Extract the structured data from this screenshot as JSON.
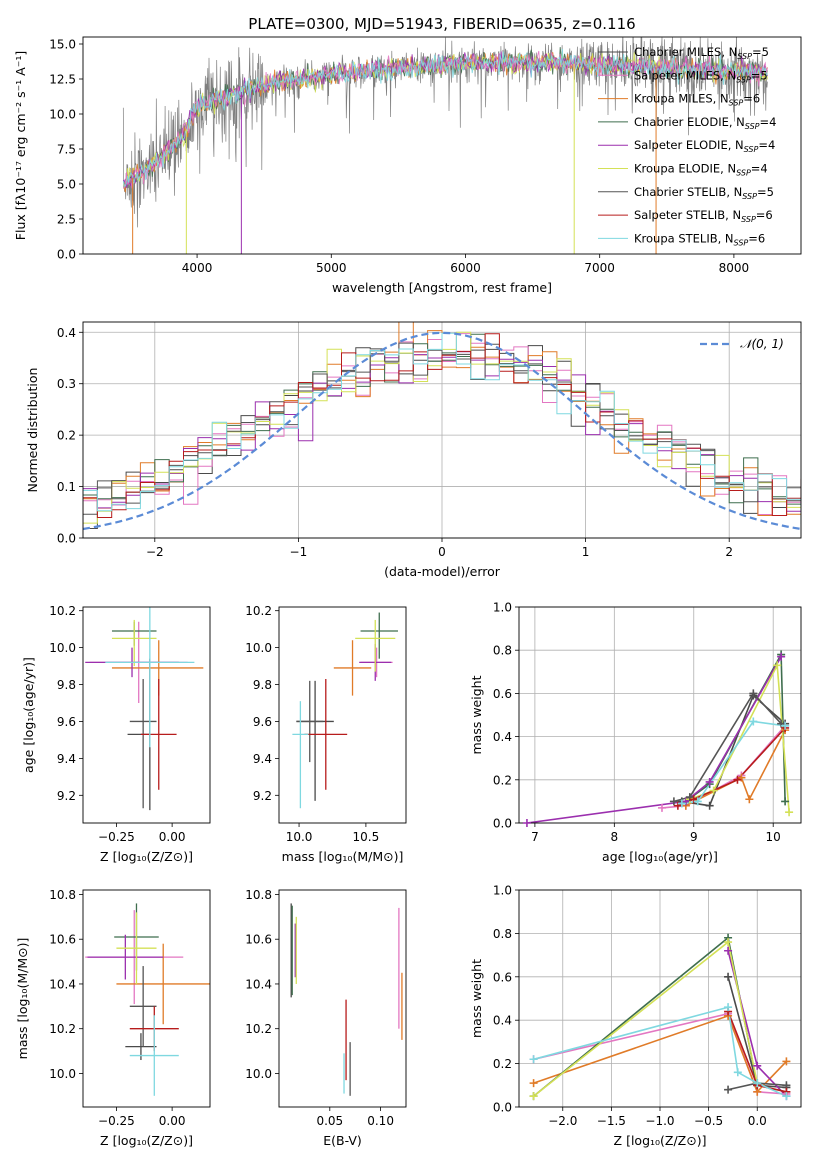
{
  "figure": {
    "title": "PLATE=0300, MJD=51943, FIBERID=0635, z=0.116"
  },
  "legend_models": [
    {
      "name": "Chabrier MILES, N",
      "sub": "SSP",
      "tail": "=5",
      "color": "#4a4a4a"
    },
    {
      "name": "Salpeter MILES, N",
      "sub": "SSP",
      "tail": "=5",
      "color": "#e377c2"
    },
    {
      "name": "Kroupa MILES, N",
      "sub": "SSP",
      "tail": "=6",
      "color": "#e07b28"
    },
    {
      "name": "Chabrier ELODIE, N",
      "sub": "SSP",
      "tail": "=4",
      "color": "#3f6e4e"
    },
    {
      "name": "Salpeter ELODIE, N",
      "sub": "SSP",
      "tail": "=4",
      "color": "#9b2fae"
    },
    {
      "name": "Kroupa ELODIE, N",
      "sub": "SSP",
      "tail": "=4",
      "color": "#d4e157"
    },
    {
      "name": "Chabrier STELIB, N",
      "sub": "SSP",
      "tail": "=5",
      "color": "#555555"
    },
    {
      "name": "Salpeter STELIB, N",
      "sub": "SSP",
      "tail": "=6",
      "color": "#b71c1c"
    },
    {
      "name": "Kroupa STELIB, N",
      "sub": "SSP",
      "tail": "=6",
      "color": "#7fd8e0"
    }
  ],
  "chart_data": [
    {
      "id": "spectrum",
      "type": "line",
      "xlabel": "wavelength [Angstrom, rest frame]",
      "ylabel": "Flux [fλ10⁻¹⁷ erg cm⁻² s⁻¹ A⁻¹]",
      "xlim": [
        3150,
        8500
      ],
      "ylim": [
        0,
        15.5
      ],
      "xticks": [
        4000,
        5000,
        6000,
        7000,
        8000
      ],
      "yticks": [
        0.0,
        2.5,
        5.0,
        7.5,
        10.0,
        12.5,
        15.0
      ],
      "data_range": [
        3450,
        8250
      ],
      "data_envelope": {
        "x": [
          3450,
          3700,
          3900,
          4000,
          4300,
          4600,
          5000,
          5500,
          6000,
          6500,
          7000,
          7500,
          8000,
          8250
        ],
        "y": [
          5.0,
          6.5,
          8.5,
          10.5,
          11.5,
          12.3,
          12.8,
          13.3,
          13.6,
          13.7,
          13.5,
          13.3,
          13.1,
          13.0
        ]
      },
      "legend_position": "upper right"
    },
    {
      "id": "residuals",
      "type": "histogram",
      "xlabel": "(data-model)/error",
      "ylabel": "Normed distribution",
      "xlim": [
        -2.5,
        2.5
      ],
      "ylim": [
        0,
        0.42
      ],
      "xticks": [
        -2,
        -1,
        0,
        1,
        2
      ],
      "yticks": [
        0.0,
        0.1,
        0.2,
        0.3,
        0.4
      ],
      "grid": true,
      "reference": {
        "label": "𝒩(0, 1)",
        "type": "gaussian",
        "mean": 0,
        "sigma": 1,
        "color": "#5b8bd6"
      },
      "legend_position": "upper right"
    },
    {
      "id": "age-vs-Z",
      "type": "errorbar",
      "xlabel": "Z [log₁₀(Z/Z⊙)]",
      "ylabel": "age  [log₁₀(age/yr)]",
      "xlim": [
        -0.4,
        0.17
      ],
      "ylim": [
        9.05,
        10.22
      ],
      "xticks": [
        -0.25,
        0.0
      ],
      "xticklabels": [
        "−0.25",
        "0.00"
      ],
      "yticks": [
        9.2,
        9.4,
        9.6,
        9.8,
        10.0,
        10.2
      ],
      "points": [
        {
          "model": 0,
          "x": -0.1,
          "y": 9.53,
          "xerr": [
            0.1,
            0.0
          ],
          "yerr": [
            0.41,
            0.41
          ]
        },
        {
          "model": 1,
          "x": -0.15,
          "y": 9.92,
          "xerr": [
            0.22,
            0.22
          ],
          "yerr": [
            0.22,
            0.22
          ]
        },
        {
          "model": 2,
          "x": -0.06,
          "y": 9.89,
          "xerr": [
            0.21,
            0.2
          ],
          "yerr": [
            0.15,
            0.15
          ]
        },
        {
          "model": 3,
          "x": -0.17,
          "y": 10.09,
          "xerr": [
            0.1,
            0.1
          ],
          "yerr": [
            0.08,
            0.05
          ]
        },
        {
          "model": 4,
          "x": -0.18,
          "y": 9.92,
          "xerr": [
            0.21,
            0.21
          ],
          "yerr": [
            0.08,
            0.08
          ]
        },
        {
          "model": 5,
          "x": -0.17,
          "y": 10.05,
          "xerr": [
            0.1,
            0.1
          ],
          "yerr": [
            0.15,
            0.1
          ]
        },
        {
          "model": 6,
          "x": -0.13,
          "y": 9.6,
          "xerr": [
            0.06,
            0.06
          ],
          "yerr": [
            0.47,
            0.23
          ]
        },
        {
          "model": 7,
          "x": -0.06,
          "y": 9.53,
          "xerr": [
            0.08,
            0.08
          ],
          "yerr": [
            0.3,
            0.3
          ]
        },
        {
          "model": 8,
          "x": -0.1,
          "y": 9.92,
          "xerr": [
            0.2,
            0.2
          ],
          "yerr": [
            0.46,
            0.46
          ]
        }
      ]
    },
    {
      "id": "age-vs-mass",
      "type": "errorbar",
      "xlabel": "mass [log₁₀(M/M⊙)]",
      "ylabel": "",
      "xlim": [
        9.85,
        10.8
      ],
      "ylim": [
        9.05,
        10.22
      ],
      "xticks": [
        10.0,
        10.5
      ],
      "xticklabels": [
        "10.0",
        "10.5"
      ],
      "yticks": [
        9.2,
        9.4,
        9.6,
        9.8,
        10.0,
        10.2
      ],
      "points": [
        {
          "model": 0,
          "x": 10.12,
          "y": 9.6,
          "xerr": [
            0.14,
            0.14
          ],
          "yerr": [
            0.43,
            0.22
          ]
        },
        {
          "model": 1,
          "x": 10.58,
          "y": 9.92,
          "xerr": [
            0.12,
            0.12
          ],
          "yerr": [
            0.08,
            0.08
          ]
        },
        {
          "model": 2,
          "x": 10.4,
          "y": 9.89,
          "xerr": [
            0.14,
            0.14
          ],
          "yerr": [
            0.15,
            0.15
          ]
        },
        {
          "model": 3,
          "x": 10.6,
          "y": 10.09,
          "xerr": [
            0.14,
            0.14
          ],
          "yerr": [
            0.15,
            0.1
          ]
        },
        {
          "model": 4,
          "x": 10.57,
          "y": 9.92,
          "xerr": [
            0.12,
            0.12
          ],
          "yerr": [
            0.1,
            0.1
          ]
        },
        {
          "model": 5,
          "x": 10.57,
          "y": 10.05,
          "xerr": [
            0.15,
            0.15
          ],
          "yerr": [
            0.18,
            0.1
          ]
        },
        {
          "model": 6,
          "x": 10.08,
          "y": 9.6,
          "xerr": [
            0.1,
            0.1
          ],
          "yerr": [
            0.22,
            0.22
          ]
        },
        {
          "model": 7,
          "x": 10.2,
          "y": 9.53,
          "xerr": [
            0.16,
            0.16
          ],
          "yerr": [
            0.3,
            0.3
          ]
        },
        {
          "model": 8,
          "x": 10.01,
          "y": 9.53,
          "xerr": [
            0.06,
            0.06
          ],
          "yerr": [
            0.4,
            0.18
          ]
        }
      ]
    },
    {
      "id": "mass-weight-vs-age",
      "type": "line",
      "xlabel": "age  [log₁₀(age/yr)]",
      "ylabel": "mass weight",
      "xlim": [
        6.8,
        10.35
      ],
      "ylim": [
        0,
        1.0
      ],
      "xticks": [
        7,
        8,
        9,
        10
      ],
      "yticks": [
        0.0,
        0.2,
        0.4,
        0.6,
        0.8,
        1.0
      ],
      "grid": true,
      "series": [
        {
          "model": 0,
          "x": [
            8.85,
            9.2,
            9.75,
            10.15
          ],
          "y": [
            0.1,
            0.08,
            0.59,
            0.46
          ]
        },
        {
          "model": 1,
          "x": [
            8.6,
            8.9,
            9.6,
            10.15
          ],
          "y": [
            0.07,
            0.08,
            0.22,
            0.45
          ]
        },
        {
          "model": 2,
          "x": [
            8.9,
            9.6,
            9.7,
            10.15
          ],
          "y": [
            0.08,
            0.21,
            0.11,
            0.43
          ]
        },
        {
          "model": 3,
          "x": [
            8.9,
            9.2,
            10.1,
            10.15
          ],
          "y": [
            0.1,
            0.18,
            0.78,
            0.1
          ]
        },
        {
          "model": 4,
          "x": [
            6.9,
            8.9,
            9.2,
            10.1
          ],
          "y": [
            0.0,
            0.1,
            0.19,
            0.77
          ]
        },
        {
          "model": 5,
          "x": [
            8.95,
            9.25,
            10.05,
            10.2
          ],
          "y": [
            0.11,
            0.15,
            0.73,
            0.05
          ]
        },
        {
          "model": 6,
          "x": [
            8.75,
            8.95,
            9.75,
            10.1
          ],
          "y": [
            0.1,
            0.12,
            0.6,
            0.46
          ]
        },
        {
          "model": 7,
          "x": [
            8.8,
            9.0,
            9.55,
            10.15
          ],
          "y": [
            0.08,
            0.11,
            0.2,
            0.44
          ]
        },
        {
          "model": 8,
          "x": [
            8.85,
            9.05,
            9.75,
            10.15
          ],
          "y": [
            0.09,
            0.1,
            0.47,
            0.45
          ]
        }
      ]
    },
    {
      "id": "mass-vs-Z",
      "type": "errorbar",
      "xlabel": "Z [log₁₀(Z/Z⊙)]",
      "ylabel": "mass [log₁₀(M/M⊙)]",
      "xlim": [
        -0.4,
        0.17
      ],
      "ylim": [
        9.85,
        10.82
      ],
      "xticks": [
        -0.25,
        0.0
      ],
      "xticklabels": [
        "−0.25",
        "0.00"
      ],
      "yticks": [
        10.0,
        10.2,
        10.4,
        10.6,
        10.8
      ],
      "points": [
        {
          "model": 0,
          "x": -0.14,
          "y": 10.12,
          "xerr": [
            0.07,
            0.07
          ],
          "yerr": [
            0.06,
            0.06
          ]
        },
        {
          "model": 1,
          "x": -0.17,
          "y": 10.52,
          "xerr": [
            0.22,
            0.22
          ],
          "yerr": [
            0.21,
            0.21
          ]
        },
        {
          "model": 2,
          "x": -0.04,
          "y": 10.4,
          "xerr": [
            0.21,
            0.21
          ],
          "yerr": [
            0.18,
            0.18
          ]
        },
        {
          "model": 3,
          "x": -0.16,
          "y": 10.61,
          "xerr": [
            0.1,
            0.1
          ],
          "yerr": [
            0.15,
            0.15
          ]
        },
        {
          "model": 4,
          "x": -0.21,
          "y": 10.52,
          "xerr": [
            0.17,
            0.17
          ],
          "yerr": [
            0.1,
            0.1
          ]
        },
        {
          "model": 5,
          "x": -0.16,
          "y": 10.56,
          "xerr": [
            0.09,
            0.09
          ],
          "yerr": [
            0.16,
            0.16
          ]
        },
        {
          "model": 6,
          "x": -0.13,
          "y": 10.3,
          "xerr": [
            0.06,
            0.06
          ],
          "yerr": [
            0.18,
            0.18
          ]
        },
        {
          "model": 7,
          "x": -0.08,
          "y": 10.2,
          "xerr": [
            0.11,
            0.11
          ],
          "yerr": [
            0.1,
            0.1
          ]
        },
        {
          "model": 8,
          "x": -0.08,
          "y": 10.08,
          "xerr": [
            0.11,
            0.11
          ],
          "yerr": [
            0.18,
            0.18
          ]
        }
      ]
    },
    {
      "id": "mass-vs-ebv",
      "type": "errorbar",
      "xlabel": "E(B-V)",
      "ylabel": "",
      "xlim": [
        0.0,
        0.125
      ],
      "ylim": [
        9.85,
        10.82
      ],
      "xticks": [
        0.05,
        0.1
      ],
      "xticklabels": [
        "0.05",
        "0.10"
      ],
      "yticks": [
        10.0,
        10.2,
        10.4,
        10.6,
        10.8
      ],
      "points": [
        {
          "model": 0,
          "x": 0.012,
          "y": 10.55,
          "xerr": [
            0,
            0
          ],
          "yerr": [
            0.21,
            0.21
          ]
        },
        {
          "model": 1,
          "x": 0.118,
          "y": 10.47,
          "xerr": [
            0,
            0
          ],
          "yerr": [
            0.27,
            0.27
          ]
        },
        {
          "model": 2,
          "x": 0.121,
          "y": 10.3,
          "xerr": [
            0,
            0
          ],
          "yerr": [
            0.15,
            0.15
          ]
        },
        {
          "model": 3,
          "x": 0.013,
          "y": 10.55,
          "xerr": [
            0,
            0
          ],
          "yerr": [
            0.2,
            0.2
          ]
        },
        {
          "model": 4,
          "x": 0.016,
          "y": 10.55,
          "xerr": [
            0,
            0
          ],
          "yerr": [
            0.12,
            0.12
          ]
        },
        {
          "model": 5,
          "x": 0.017,
          "y": 10.55,
          "xerr": [
            0,
            0
          ],
          "yerr": [
            0.15,
            0.15
          ]
        },
        {
          "model": 6,
          "x": 0.07,
          "y": 10.02,
          "xerr": [
            0,
            0
          ],
          "yerr": [
            0.12,
            0.12
          ]
        },
        {
          "model": 7,
          "x": 0.066,
          "y": 10.15,
          "xerr": [
            0,
            0
          ],
          "yerr": [
            0.18,
            0.18
          ]
        },
        {
          "model": 8,
          "x": 0.064,
          "y": 10.0,
          "xerr": [
            0,
            0
          ],
          "yerr": [
            0.09,
            0.09
          ]
        }
      ]
    },
    {
      "id": "mass-weight-vs-Z",
      "type": "line",
      "xlabel": "Z [log₁₀(Z/Z⊙)]",
      "ylabel": "mass weight",
      "xlim": [
        -2.45,
        0.45
      ],
      "ylim": [
        0,
        1.0
      ],
      "xticks": [
        -2.0,
        -1.5,
        -1.0,
        -0.5,
        0.0
      ],
      "xticklabels": [
        "−2.0",
        "−1.5",
        "−1.0",
        "−0.5",
        "0.0"
      ],
      "yticks": [
        0.0,
        0.2,
        0.4,
        0.6,
        0.8,
        1.0
      ],
      "grid": true,
      "series": [
        {
          "model": 0,
          "x": [
            -0.3,
            0.0,
            0.3
          ],
          "y": [
            0.6,
            0.1,
            0.09
          ]
        },
        {
          "model": 1,
          "x": [
            -2.3,
            -0.3,
            0.0,
            0.3
          ],
          "y": [
            0.22,
            0.43,
            0.07,
            0.06
          ]
        },
        {
          "model": 2,
          "x": [
            -2.3,
            -0.3,
            0.0,
            0.3
          ],
          "y": [
            0.11,
            0.42,
            0.07,
            0.21
          ]
        },
        {
          "model": 3,
          "x": [
            -2.3,
            -0.3,
            0.0
          ],
          "y": [
            0.05,
            0.78,
            0.1
          ]
        },
        {
          "model": 4,
          "x": [
            -0.3,
            0.0,
            0.3
          ],
          "y": [
            0.72,
            0.19,
            0.05
          ]
        },
        {
          "model": 5,
          "x": [
            -2.3,
            -0.3,
            0.0
          ],
          "y": [
            0.05,
            0.76,
            0.11
          ]
        },
        {
          "model": 6,
          "x": [
            -0.3,
            0.0,
            0.3
          ],
          "y": [
            0.08,
            0.11,
            0.1
          ]
        },
        {
          "model": 7,
          "x": [
            -0.3,
            0.0,
            0.3
          ],
          "y": [
            0.44,
            0.1,
            0.07
          ]
        },
        {
          "model": 8,
          "x": [
            -2.3,
            -0.3,
            -0.2,
            0.0,
            0.3
          ],
          "y": [
            0.22,
            0.46,
            0.16,
            0.11,
            0.05
          ]
        }
      ]
    }
  ]
}
